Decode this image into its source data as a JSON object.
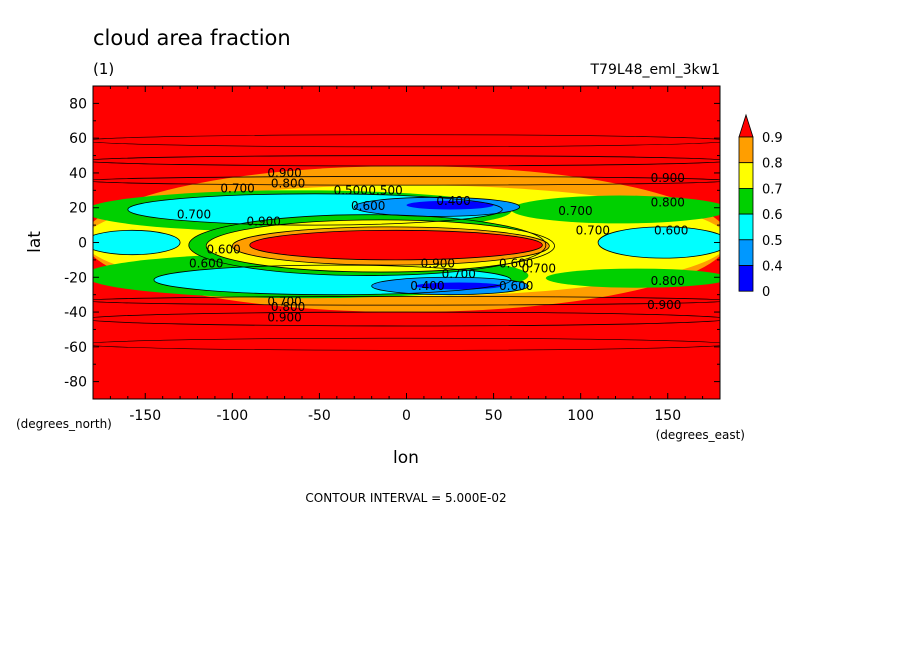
{
  "chart_data": {
    "type": "heatmap",
    "title": "cloud area fraction",
    "subtitle": "(1)",
    "dataset": "T79L48_eml_3kw1",
    "xlabel": "lon",
    "ylabel": "lat",
    "x_units": "(degrees_east)",
    "y_units": "(degrees_north)",
    "footer": "CONTOUR INTERVAL = 5.000E-02",
    "xlim": [
      -180,
      180
    ],
    "ylim": [
      -90,
      90
    ],
    "x_ticks": [
      "-150",
      "-100",
      "-50",
      "0",
      "50",
      "100",
      "150"
    ],
    "x_tick_values": [
      -150,
      -100,
      -50,
      0,
      50,
      100,
      150
    ],
    "y_ticks": [
      "80",
      "60",
      "40",
      "20",
      "0",
      "-20",
      "-40",
      "-60",
      "-80"
    ],
    "y_tick_values": [
      80,
      60,
      40,
      20,
      0,
      -20,
      -40,
      -60,
      -80
    ],
    "colorbar": {
      "labels": [
        "0.9",
        "0.8",
        "0.7",
        "0.6",
        "0.5",
        "0.4",
        "0"
      ],
      "colors": [
        "#ff0000",
        "#ff9e00",
        "#ffff00",
        "#00d000",
        "#00ffff",
        "#0098ff",
        "#0000ff"
      ]
    },
    "contour_labels": [
      {
        "text": "0.900",
        "lon": -70,
        "lat": 40
      },
      {
        "text": "0.800",
        "lon": -68,
        "lat": 34
      },
      {
        "text": "0.700",
        "lon": -97,
        "lat": 31
      },
      {
        "text": "0.500",
        "lon": -32,
        "lat": 30
      },
      {
        "text": "0.500",
        "lon": -12,
        "lat": 30
      },
      {
        "text": "0.400",
        "lon": 27,
        "lat": 24
      },
      {
        "text": "0.600",
        "lon": -22,
        "lat": 21
      },
      {
        "text": "0.700",
        "lon": -122,
        "lat": 16
      },
      {
        "text": "0.900",
        "lon": -82,
        "lat": 12
      },
      {
        "text": "0.600",
        "lon": -105,
        "lat": -4
      },
      {
        "text": "0.600",
        "lon": -115,
        "lat": -12
      },
      {
        "text": "0.900",
        "lon": 18,
        "lat": -12
      },
      {
        "text": "0.600",
        "lon": 63,
        "lat": -12
      },
      {
        "text": "0.700",
        "lon": 76,
        "lat": -15
      },
      {
        "text": "0.700",
        "lon": 30,
        "lat": -18
      },
      {
        "text": "0.400",
        "lon": 12,
        "lat": -25
      },
      {
        "text": "0.600",
        "lon": 63,
        "lat": -25
      },
      {
        "text": "0.700",
        "lon": -70,
        "lat": -34
      },
      {
        "text": "0.800",
        "lon": -68,
        "lat": -37
      },
      {
        "text": "0.900",
        "lon": -70,
        "lat": -43
      },
      {
        "text": "0.700",
        "lon": 97,
        "lat": 18
      },
      {
        "text": "0.700",
        "lon": 107,
        "lat": 7
      },
      {
        "text": "0.600",
        "lon": 152,
        "lat": 7
      },
      {
        "text": "0.900",
        "lon": 150,
        "lat": 37
      },
      {
        "text": "0.800",
        "lon": 150,
        "lat": 23
      },
      {
        "text": "0.800",
        "lon": 150,
        "lat": -22
      },
      {
        "text": "0.900",
        "lon": 148,
        "lat": -36
      }
    ]
  }
}
